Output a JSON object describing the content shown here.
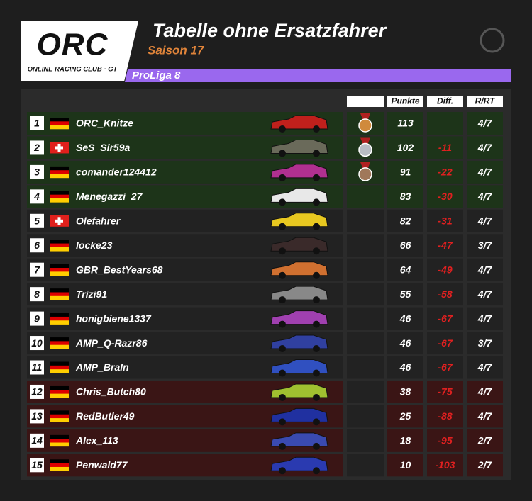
{
  "logo": {
    "mark": "ORC",
    "tagline": "ONLINE RACING CLUB · GT"
  },
  "header": {
    "title": "Tabelle ohne Ersatzfahrer",
    "season": "Saison 17",
    "league": "ProLiga 8"
  },
  "table": {
    "columns": [
      "Punkte",
      "Diff.",
      "R/RT"
    ],
    "rows": [
      {
        "position": 1,
        "flag": "de",
        "name": "ORC_Knitze",
        "points": 113,
        "diff": null,
        "rrt": "4/7"
      },
      {
        "position": 2,
        "flag": "ch",
        "name": "SeS_Sir59a",
        "points": 102,
        "diff": -11,
        "rrt": "4/7"
      },
      {
        "position": 3,
        "flag": "de",
        "name": "comander124412",
        "points": 91,
        "diff": -22,
        "rrt": "4/7"
      },
      {
        "position": 4,
        "flag": "de",
        "name": "Menegazzi_27",
        "points": 83,
        "diff": -30,
        "rrt": "4/7"
      },
      {
        "position": 5,
        "flag": "ch",
        "name": "Olefahrer",
        "points": 82,
        "diff": -31,
        "rrt": "4/7"
      },
      {
        "position": 6,
        "flag": "de",
        "name": "locke23",
        "points": 66,
        "diff": -47,
        "rrt": "3/7"
      },
      {
        "position": 7,
        "flag": "de",
        "name": "GBR_BestYears68",
        "points": 64,
        "diff": -49,
        "rrt": "4/7"
      },
      {
        "position": 8,
        "flag": "de",
        "name": "Trizi91",
        "points": 55,
        "diff": -58,
        "rrt": "4/7"
      },
      {
        "position": 9,
        "flag": "de",
        "name": "honigbiene1337",
        "points": 46,
        "diff": -67,
        "rrt": "4/7"
      },
      {
        "position": 10,
        "flag": "de",
        "name": "AMP_Q-Razr86",
        "points": 46,
        "diff": -67,
        "rrt": "3/7"
      },
      {
        "position": 11,
        "flag": "de",
        "name": "AMP_Braln",
        "points": 46,
        "diff": -67,
        "rrt": "4/7"
      },
      {
        "position": 12,
        "flag": "de",
        "name": "Chris_Butch80",
        "points": 38,
        "diff": -75,
        "rrt": "4/7"
      },
      {
        "position": 13,
        "flag": "de",
        "name": "RedButler49",
        "points": 25,
        "diff": -88,
        "rrt": "4/7"
      },
      {
        "position": 14,
        "flag": "de",
        "name": "Alex_113",
        "points": 18,
        "diff": -95,
        "rrt": "2/7"
      },
      {
        "position": 15,
        "flag": "de",
        "name": "Penwald77",
        "points": 10,
        "diff": -103,
        "rrt": "2/7"
      }
    ]
  }
}
